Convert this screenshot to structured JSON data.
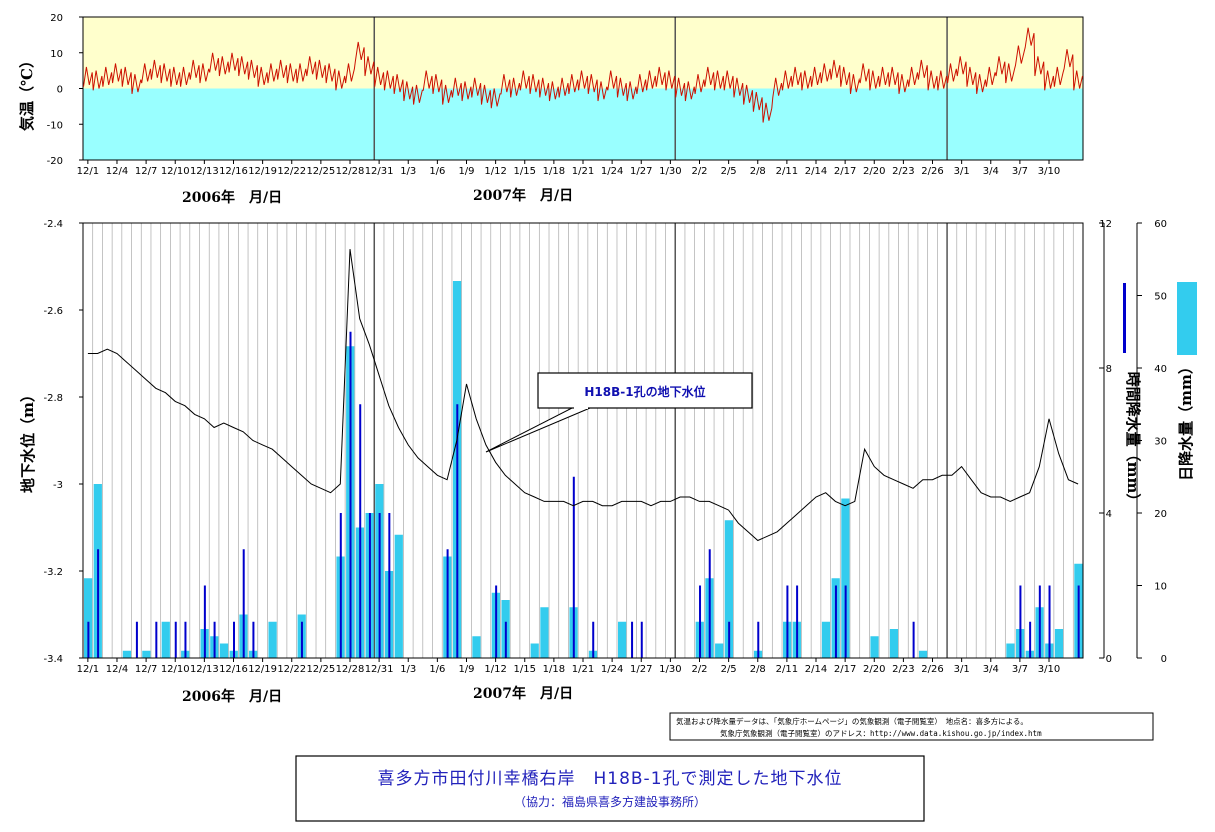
{
  "colors": {
    "temp_line": "#cc1100",
    "temp_above_zero_bg": "#ffffcc",
    "temp_below_zero_bg": "#99ffff",
    "gw_line": "#000000",
    "hourly_rain": "#0000cc",
    "daily_rain": "#33ccee",
    "title_text": "#2222bb"
  },
  "x_axis": {
    "tick_labels": [
      "12/1",
      "12/4",
      "12/7",
      "12/10",
      "12/13",
      "12/16",
      "12/19",
      "12/22",
      "12/25",
      "12/28",
      "12/31",
      "1/3",
      "1/6",
      "1/9",
      "1/12",
      "1/15",
      "1/18",
      "1/21",
      "1/24",
      "1/27",
      "1/30",
      "2/2",
      "2/5",
      "2/8",
      "2/11",
      "2/14",
      "2/17",
      "2/20",
      "2/23",
      "2/26",
      "3/1",
      "3/4",
      "3/7",
      "3/10"
    ],
    "month_separators": [
      "12/31",
      "1/31",
      "2/28"
    ],
    "year_label_1": "2006年　月/日",
    "year_label_2": "2007年　月/日"
  },
  "temp_panel": {
    "ylabel": "気温（℃）",
    "ylim": [
      -20,
      20
    ],
    "yticks": [
      "20",
      "10",
      "0",
      "-10",
      "-20"
    ]
  },
  "gw_panel": {
    "ylabel": "地下水位（m）",
    "ylim": [
      -3.4,
      -2.4
    ],
    "yticks": [
      "-2.4",
      "-2.6",
      "-2.8",
      "-3",
      "-3.2",
      "-3.4"
    ],
    "hourly_axis_label": "時間降水量（mm）",
    "hourly_ticks": [
      "12",
      "8",
      "4",
      "0"
    ],
    "daily_axis_label": "日降水量（mm）",
    "daily_ticks": [
      "60",
      "50",
      "40",
      "30",
      "20",
      "10",
      "0"
    ]
  },
  "callout": "H18B-1孔の地下水位",
  "note": {
    "line1": "気温および降水量データは、「気象庁ホームページ」の気象観測（電子閲覧室）　地点名：喜多方による。",
    "line2": "気象庁気象観測（電子閲覧室）のアドレス：http://www.data.kishou.go.jp/index.htm"
  },
  "title": {
    "main": "喜多方市田付川幸橋右岸　H18B-1孔で測定した地下水位",
    "sub": "（協力：福島県喜多方建設事務所）"
  },
  "chart_data": [
    {
      "type": "line",
      "name": "temperature",
      "x_unit": "day index from 12/1",
      "ylabel": "気温（℃）",
      "ylim": [
        -20,
        20
      ],
      "x": [
        0,
        1,
        2,
        3,
        4,
        5,
        6,
        7,
        8,
        9,
        10,
        11,
        12,
        13,
        14,
        15,
        16,
        17,
        18,
        19,
        20,
        21,
        22,
        23,
        24,
        25,
        26,
        27,
        28,
        29,
        30,
        31,
        32,
        33,
        34,
        35,
        36,
        37,
        38,
        39,
        40,
        41,
        42,
        43,
        44,
        45,
        46,
        47,
        48,
        49,
        50,
        51,
        52,
        53,
        54,
        55,
        56,
        57,
        58,
        59,
        60,
        61,
        62,
        63,
        64,
        65,
        66,
        67,
        68,
        69,
        70,
        71,
        72,
        73,
        74,
        75,
        76,
        77,
        78,
        79,
        80,
        81,
        82,
        83,
        84,
        85,
        86,
        87,
        88,
        89,
        90,
        91,
        92,
        93,
        94,
        95,
        96,
        97,
        98,
        99,
        100,
        101,
        102
      ],
      "y": [
        3,
        2,
        3,
        4,
        3,
        1,
        4,
        5,
        4,
        3,
        3,
        5,
        4,
        7,
        6,
        7,
        6,
        5,
        3,
        4,
        5,
        4,
        4,
        6,
        5,
        4,
        2,
        4,
        10,
        6,
        3,
        2,
        1,
        -1,
        -2,
        2,
        1,
        -2,
        0,
        -1,
        0,
        -2,
        -3,
        1,
        0,
        2,
        1,
        0,
        -1,
        0,
        1,
        2,
        1,
        -1,
        2,
        0,
        -1,
        1,
        2,
        3,
        2,
        0,
        -1,
        1,
        3,
        2,
        2,
        0,
        -2,
        -4,
        -7,
        0,
        2,
        3,
        2,
        3,
        4,
        5,
        3,
        1,
        4,
        2,
        3,
        3,
        1,
        3,
        5,
        2,
        2,
        4,
        6,
        3,
        1,
        3,
        6,
        4,
        9,
        14,
        6,
        2,
        3,
        8,
        2
      ]
    },
    {
      "type": "line",
      "name": "groundwater",
      "x_unit": "day index from 12/1",
      "ylabel": "地下水位（m）",
      "ylim": [
        -3.4,
        -2.4
      ],
      "x": [
        0,
        1,
        2,
        3,
        4,
        5,
        6,
        7,
        8,
        9,
        10,
        11,
        12,
        13,
        14,
        15,
        16,
        17,
        18,
        19,
        20,
        21,
        22,
        23,
        24,
        25,
        26,
        27,
        28,
        29,
        30,
        31,
        32,
        33,
        34,
        35,
        36,
        37,
        38,
        39,
        40,
        41,
        42,
        43,
        44,
        45,
        46,
        47,
        48,
        49,
        50,
        51,
        52,
        53,
        54,
        55,
        56,
        57,
        58,
        59,
        60,
        61,
        62,
        63,
        64,
        65,
        66,
        67,
        68,
        69,
        70,
        71,
        72,
        73,
        74,
        75,
        76,
        77,
        78,
        79,
        80,
        81,
        82,
        83,
        84,
        85,
        86,
        87,
        88,
        89,
        90,
        91,
        92,
        93,
        94,
        95,
        96,
        97,
        98,
        99,
        100,
        101,
        102
      ],
      "y": [
        -2.7,
        -2.7,
        -2.69,
        -2.7,
        -2.72,
        -2.74,
        -2.76,
        -2.78,
        -2.79,
        -2.81,
        -2.82,
        -2.84,
        -2.85,
        -2.87,
        -2.86,
        -2.87,
        -2.88,
        -2.9,
        -2.91,
        -2.92,
        -2.94,
        -2.96,
        -2.98,
        -3.0,
        -3.01,
        -3.02,
        -3.0,
        -2.46,
        -2.62,
        -2.68,
        -2.75,
        -2.82,
        -2.87,
        -2.91,
        -2.94,
        -2.96,
        -2.98,
        -2.99,
        -2.9,
        -2.77,
        -2.85,
        -2.91,
        -2.95,
        -2.98,
        -3.0,
        -3.02,
        -3.03,
        -3.04,
        -3.04,
        -3.04,
        -3.05,
        -3.04,
        -3.04,
        -3.05,
        -3.05,
        -3.04,
        -3.04,
        -3.04,
        -3.05,
        -3.04,
        -3.04,
        -3.03,
        -3.03,
        -3.04,
        -3.04,
        -3.05,
        -3.06,
        -3.09,
        -3.11,
        -3.13,
        -3.12,
        -3.11,
        -3.09,
        -3.07,
        -3.05,
        -3.03,
        -3.02,
        -3.04,
        -3.05,
        -3.04,
        -2.92,
        -2.96,
        -2.98,
        -2.99,
        -3.0,
        -3.01,
        -2.99,
        -2.99,
        -2.98,
        -2.98,
        -2.96,
        -2.99,
        -3.02,
        -3.03,
        -3.03,
        -3.04,
        -3.03,
        -3.02,
        -2.96,
        -2.85,
        -2.93,
        -2.99,
        -3.0
      ]
    },
    {
      "type": "bar",
      "name": "daily_precipitation",
      "x_unit": "day index from 12/1",
      "ylabel": "日降水量（mm）",
      "ylim": [
        0,
        60
      ],
      "x": [
        0,
        1,
        4,
        6,
        8,
        10,
        12,
        13,
        14,
        15,
        16,
        17,
        19,
        22,
        26,
        27,
        28,
        29,
        30,
        31,
        32,
        37,
        38,
        40,
        42,
        43,
        46,
        47,
        50,
        52,
        55,
        63,
        64,
        65,
        66,
        69,
        72,
        73,
        76,
        77,
        78,
        81,
        83,
        86,
        95,
        96,
        97,
        98,
        99,
        100,
        102
      ],
      "values": [
        11,
        24,
        1,
        1,
        5,
        1,
        4,
        3,
        2,
        1,
        6,
        1,
        5,
        6,
        14,
        43,
        18,
        20,
        24,
        12,
        17,
        14,
        52,
        3,
        9,
        8,
        2,
        7,
        7,
        1,
        5,
        5,
        11,
        2,
        19,
        1,
        5,
        5,
        5,
        11,
        22,
        3,
        4,
        1,
        2,
        4,
        1,
        7,
        2,
        4,
        13
      ]
    },
    {
      "type": "bar",
      "name": "hourly_precipitation",
      "x_unit": "day index from 12/1",
      "ylabel": "時間降水量（mm）",
      "ylim": [
        0,
        12
      ],
      "x": [
        0,
        1,
        5,
        7,
        9,
        10,
        12,
        13,
        15,
        16,
        17,
        22,
        26,
        27,
        28,
        29,
        30,
        31,
        37,
        38,
        42,
        43,
        50,
        52,
        56,
        57,
        63,
        64,
        66,
        69,
        72,
        73,
        77,
        78,
        85,
        96,
        97,
        98,
        99,
        102
      ],
      "values": [
        1,
        3,
        1,
        1,
        1,
        1,
        2,
        1,
        1,
        3,
        1,
        1,
        4,
        9,
        7,
        4,
        4,
        4,
        3,
        7,
        2,
        1,
        5,
        1,
        1,
        1,
        2,
        3,
        1,
        1,
        2,
        2,
        2,
        2,
        1,
        2,
        1,
        2,
        2,
        2
      ]
    }
  ]
}
